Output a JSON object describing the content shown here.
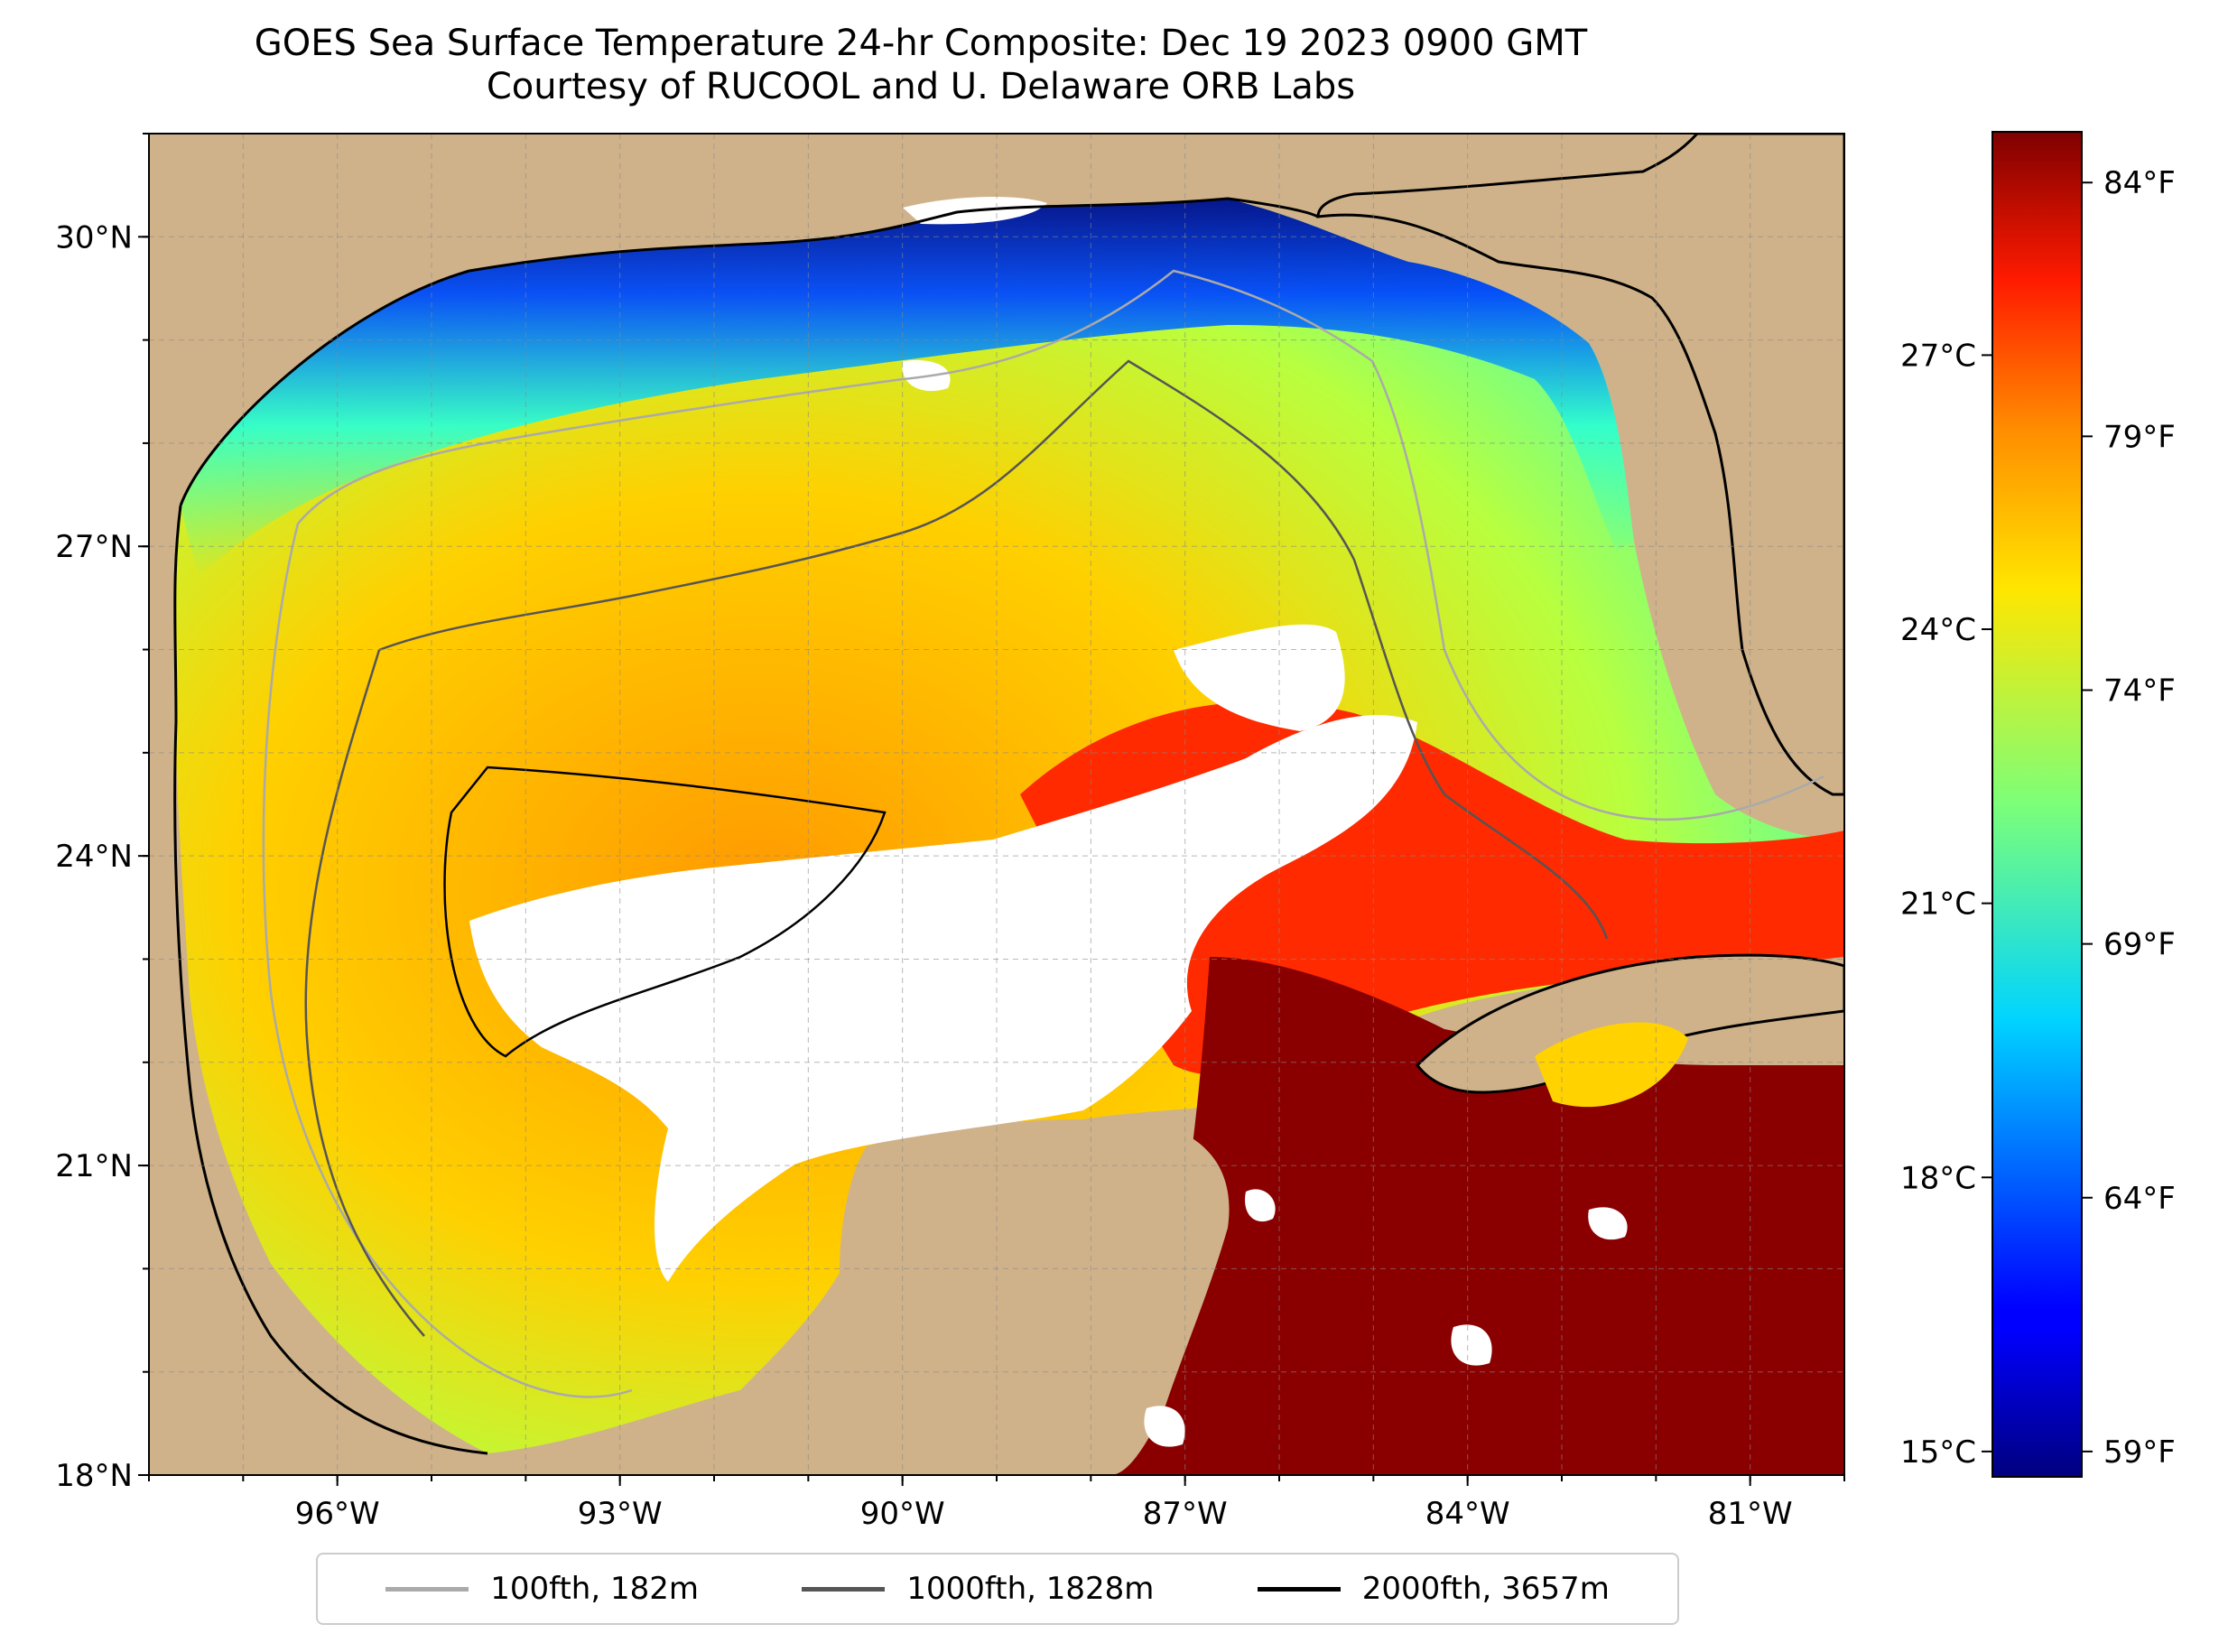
{
  "title": {
    "line1": "GOES Sea Surface Temperature 24-hr Composite: Dec 19 2023 0900 GMT",
    "line2": "Courtesy of RUCOOL and U. Delaware ORB Labs"
  },
  "map": {
    "lon_range": [
      -98,
      -80
    ],
    "lat_range": [
      18,
      31
    ],
    "lon_ticks": [
      {
        "value": -96,
        "label": "96°W"
      },
      {
        "value": -93,
        "label": "93°W"
      },
      {
        "value": -90,
        "label": "90°W"
      },
      {
        "value": -87,
        "label": "87°W"
      },
      {
        "value": -84,
        "label": "84°W"
      },
      {
        "value": -81,
        "label": "81°W"
      }
    ],
    "lat_ticks": [
      {
        "value": 30,
        "label": "30°N"
      },
      {
        "value": 27,
        "label": "27°N"
      },
      {
        "value": 24,
        "label": "24°N"
      },
      {
        "value": 21,
        "label": "21°N"
      },
      {
        "value": 18,
        "label": "18°N"
      }
    ],
    "gridlines": true,
    "land_color": "#cfb28a",
    "no_data_color": "#ffffff"
  },
  "colorbar": {
    "colormap": "jet",
    "range_f": [
      58.5,
      85
    ],
    "fahrenheit_ticks": [
      {
        "value": 84,
        "label": "84°F"
      },
      {
        "value": 79,
        "label": "79°F"
      },
      {
        "value": 74,
        "label": "74°F"
      },
      {
        "value": 69,
        "label": "69°F"
      },
      {
        "value": 64,
        "label": "64°F"
      },
      {
        "value": 59,
        "label": "59°F"
      }
    ],
    "celsius_ticks": [
      {
        "value_f": 80.6,
        "label": "27°C"
      },
      {
        "value_f": 75.2,
        "label": "24°C"
      },
      {
        "value_f": 69.8,
        "label": "21°C"
      },
      {
        "value_f": 64.4,
        "label": "18°C"
      },
      {
        "value_f": 59.0,
        "label": "15°C"
      }
    ]
  },
  "legend": {
    "items": [
      {
        "label": "100fth, 182m",
        "color": "#aaaaaa"
      },
      {
        "label": "1000fth, 1828m",
        "color": "#555555"
      },
      {
        "label": "2000fth, 3657m",
        "color": "#000000"
      }
    ]
  }
}
